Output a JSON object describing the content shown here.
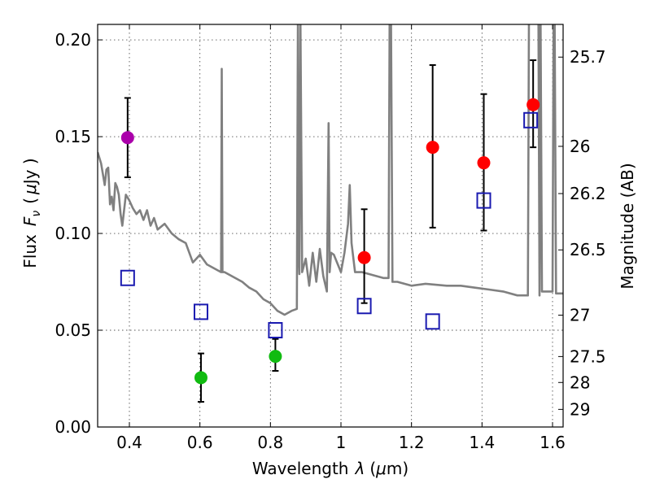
{
  "chart_data": {
    "type": "scatter",
    "xlabel_text": "Wavelength",
    "xlabel_symbol": "λ",
    "xlabel_unit_open": "(",
    "xlabel_mu": "μ",
    "xlabel_unit_close": "m)",
    "ylabel_text": "Flux",
    "ylabel_symbol": "F",
    "ylabel_sub": "ν",
    "ylabel_unit_open": "(",
    "ylabel_mu": "μ",
    "ylabel_unit_close": "Jy )",
    "y2label": "Magnitude (AB)",
    "xlim": [
      0.31,
      1.63
    ],
    "ylim": [
      0.0,
      0.208
    ],
    "x_ticks": [
      0.4,
      0.6,
      0.8,
      1.0,
      1.2,
      1.4,
      1.6
    ],
    "x_tick_labels": [
      "0.4",
      "0.6",
      "0.8",
      "1",
      "1.2",
      "1.4",
      "1.6"
    ],
    "y_ticks": [
      0.0,
      0.05,
      0.1,
      0.15,
      0.2
    ],
    "y_tick_labels": [
      "0.00",
      "0.05",
      "0.10",
      "0.15",
      "0.20"
    ],
    "y2_ticks": [
      {
        "label": "25.7",
        "flux": 0.1911
      },
      {
        "label": "26",
        "flux": 0.145
      },
      {
        "label": "26.2",
        "flux": 0.1206
      },
      {
        "label": "26.5",
        "flux": 0.0915
      },
      {
        "label": "27",
        "flux": 0.0578
      },
      {
        "label": "27.5",
        "flux": 0.0364
      },
      {
        "label": "28",
        "flux": 0.023
      },
      {
        "label": "29",
        "flux": 0.0091
      }
    ],
    "grid": true,
    "series": [
      {
        "name": "observed-purple",
        "marker": "circle",
        "color": "#aa00aa",
        "points": [
          {
            "x": 0.395,
            "y": 0.1495,
            "lo": 0.129,
            "hi": 0.17
          }
        ]
      },
      {
        "name": "observed-green",
        "marker": "circle",
        "color": "#11bb11",
        "points": [
          {
            "x": 0.603,
            "y": 0.0255,
            "lo": 0.013,
            "hi": 0.038
          },
          {
            "x": 0.814,
            "y": 0.0365,
            "lo": 0.029,
            "hi": 0.0455
          }
        ]
      },
      {
        "name": "observed-red",
        "marker": "circle",
        "color": "#ff0000",
        "points": [
          {
            "x": 1.066,
            "y": 0.0875,
            "lo": 0.064,
            "hi": 0.1125
          },
          {
            "x": 1.26,
            "y": 0.1445,
            "lo": 0.103,
            "hi": 0.187
          },
          {
            "x": 1.405,
            "y": 0.1365,
            "lo": 0.1015,
            "hi": 0.172
          },
          {
            "x": 1.545,
            "y": 0.1665,
            "lo": 0.1445,
            "hi": 0.1895
          }
        ]
      },
      {
        "name": "model-photometry",
        "marker": "square-open",
        "color": "#1a1ab0",
        "points": [
          {
            "x": 0.395,
            "y": 0.077
          },
          {
            "x": 0.603,
            "y": 0.0595
          },
          {
            "x": 0.814,
            "y": 0.05
          },
          {
            "x": 1.066,
            "y": 0.0625
          },
          {
            "x": 1.26,
            "y": 0.0545
          },
          {
            "x": 1.405,
            "y": 0.117
          },
          {
            "x": 1.538,
            "y": 0.1585
          }
        ]
      },
      {
        "name": "model-sed",
        "marker": "line",
        "color": "#808080",
        "x": [
          0.31,
          0.32,
          0.33,
          0.335,
          0.34,
          0.345,
          0.35,
          0.355,
          0.36,
          0.365,
          0.37,
          0.375,
          0.38,
          0.39,
          0.4,
          0.41,
          0.42,
          0.43,
          0.44,
          0.45,
          0.46,
          0.47,
          0.48,
          0.5,
          0.52,
          0.54,
          0.56,
          0.58,
          0.6,
          0.62,
          0.64,
          0.66,
          0.662,
          0.664,
          0.666,
          0.67,
          0.7,
          0.72,
          0.74,
          0.76,
          0.78,
          0.8,
          0.82,
          0.84,
          0.86,
          0.875,
          0.878,
          0.88,
          0.882,
          0.885,
          0.89,
          0.9,
          0.91,
          0.92,
          0.93,
          0.94,
          0.95,
          0.96,
          0.965,
          0.968,
          0.972,
          0.98,
          1.0,
          1.01,
          1.02,
          1.025,
          1.03,
          1.04,
          1.06,
          1.08,
          1.1,
          1.12,
          1.135,
          1.138,
          1.142,
          1.146,
          1.15,
          1.16,
          1.2,
          1.24,
          1.3,
          1.34,
          1.38,
          1.42,
          1.46,
          1.5,
          1.53,
          1.533,
          1.56,
          1.563,
          1.566,
          1.57,
          1.6,
          1.603,
          1.606,
          1.61,
          1.63
        ],
        "y": [
          0.142,
          0.136,
          0.125,
          0.133,
          0.134,
          0.115,
          0.119,
          0.112,
          0.126,
          0.124,
          0.12,
          0.11,
          0.104,
          0.12,
          0.117,
          0.113,
          0.11,
          0.112,
          0.107,
          0.112,
          0.104,
          0.108,
          0.102,
          0.105,
          0.1,
          0.097,
          0.095,
          0.085,
          0.089,
          0.084,
          0.082,
          0.08,
          0.185,
          0.08,
          0.08,
          0.08,
          0.077,
          0.075,
          0.072,
          0.07,
          0.066,
          0.064,
          0.06,
          0.058,
          0.06,
          0.061,
          0.21,
          0.09,
          0.079,
          0.21,
          0.08,
          0.087,
          0.073,
          0.09,
          0.075,
          0.092,
          0.078,
          0.07,
          0.157,
          0.08,
          0.09,
          0.089,
          0.08,
          0.09,
          0.105,
          0.125,
          0.095,
          0.08,
          0.08,
          0.079,
          0.078,
          0.077,
          0.077,
          0.21,
          0.21,
          0.075,
          0.075,
          0.075,
          0.073,
          0.074,
          0.073,
          0.073,
          0.072,
          0.071,
          0.07,
          0.068,
          0.068,
          0.21,
          0.21,
          0.068,
          0.21,
          0.07,
          0.07,
          0.21,
          0.21,
          0.069,
          0.069
        ]
      }
    ]
  }
}
